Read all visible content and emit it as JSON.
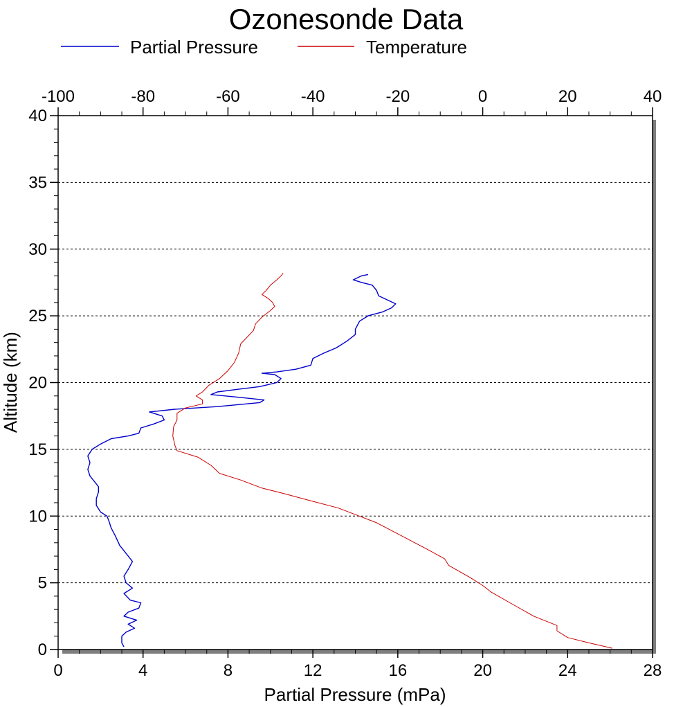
{
  "chart_data": {
    "type": "line",
    "title": "Ozonesonde Data",
    "legend": {
      "placement": "top",
      "entries": [
        {
          "label": "Partial Pressure",
          "color": "#0000cc"
        },
        {
          "label": "Temperature",
          "color": "#cc0000"
        }
      ]
    },
    "xlabel": "Partial Pressure (mPa)",
    "ylabel": "Altitude (km)",
    "x_bottom": {
      "lim": [
        0,
        28
      ],
      "ticks": [
        "0",
        "4",
        "8",
        "12",
        "16",
        "20",
        "24",
        "28"
      ]
    },
    "x_top": {
      "lim": [
        -100,
        40
      ],
      "ticks": [
        "-100",
        "-80",
        "-60",
        "-40",
        "-20",
        "0",
        "20",
        "40"
      ]
    },
    "y": {
      "lim": [
        0,
        40
      ],
      "ticks": [
        "0",
        "5",
        "10",
        "15",
        "20",
        "25",
        "30",
        "35",
        "40"
      ]
    },
    "grid": "horizontal dotted at major y ticks",
    "series": [
      {
        "name": "Partial Pressure",
        "axis": "x_bottom",
        "color": "#0000cc",
        "points": [
          [
            3.1,
            0.2
          ],
          [
            3.0,
            0.5
          ],
          [
            3.0,
            1.0
          ],
          [
            3.2,
            1.3
          ],
          [
            3.6,
            1.6
          ],
          [
            3.3,
            1.9
          ],
          [
            3.7,
            2.2
          ],
          [
            3.1,
            2.5
          ],
          [
            3.3,
            2.8
          ],
          [
            3.8,
            3.1
          ],
          [
            3.9,
            3.5
          ],
          [
            3.4,
            3.7
          ],
          [
            3.1,
            4.2
          ],
          [
            3.5,
            4.6
          ],
          [
            3.2,
            5.0
          ],
          [
            3.1,
            5.5
          ],
          [
            3.3,
            6.0
          ],
          [
            3.5,
            6.6
          ],
          [
            3.2,
            7.2
          ],
          [
            2.9,
            7.8
          ],
          [
            2.7,
            8.5
          ],
          [
            2.5,
            9.1
          ],
          [
            2.4,
            9.6
          ],
          [
            2.3,
            10.0
          ],
          [
            2.0,
            10.3
          ],
          [
            1.8,
            10.8
          ],
          [
            1.8,
            11.3
          ],
          [
            1.9,
            11.8
          ],
          [
            1.9,
            12.2
          ],
          [
            1.7,
            12.6
          ],
          [
            1.5,
            13.0
          ],
          [
            1.4,
            13.5
          ],
          [
            1.5,
            14.0
          ],
          [
            1.4,
            14.5
          ],
          [
            1.6,
            15.0
          ],
          [
            2.0,
            15.4
          ],
          [
            2.5,
            15.8
          ],
          [
            3.3,
            16.0
          ],
          [
            3.8,
            16.2
          ],
          [
            3.9,
            16.6
          ],
          [
            4.5,
            16.9
          ],
          [
            5.0,
            17.2
          ],
          [
            4.9,
            17.5
          ],
          [
            4.3,
            17.8
          ],
          [
            5.5,
            18.0
          ],
          [
            7.5,
            18.2
          ],
          [
            9.5,
            18.5
          ],
          [
            9.7,
            18.7
          ],
          [
            8.5,
            18.9
          ],
          [
            7.2,
            19.1
          ],
          [
            7.5,
            19.3
          ],
          [
            8.5,
            19.5
          ],
          [
            9.5,
            19.7
          ],
          [
            10.3,
            20.0
          ],
          [
            10.5,
            20.3
          ],
          [
            10.2,
            20.6
          ],
          [
            9.6,
            20.7
          ],
          [
            10.3,
            20.8
          ],
          [
            11.2,
            21.0
          ],
          [
            11.9,
            21.3
          ],
          [
            12.0,
            21.8
          ],
          [
            12.5,
            22.2
          ],
          [
            13.1,
            22.6
          ],
          [
            13.6,
            23.1
          ],
          [
            14.0,
            23.6
          ],
          [
            14.0,
            24.0
          ],
          [
            14.2,
            24.6
          ],
          [
            14.6,
            25.0
          ],
          [
            15.3,
            25.3
          ],
          [
            15.7,
            25.6
          ],
          [
            15.9,
            25.9
          ],
          [
            15.5,
            26.2
          ],
          [
            15.1,
            26.5
          ],
          [
            15.0,
            26.9
          ],
          [
            14.8,
            27.3
          ],
          [
            14.3,
            27.5
          ],
          [
            13.9,
            27.7
          ],
          [
            14.3,
            28.0
          ],
          [
            14.6,
            28.1
          ]
        ]
      },
      {
        "name": "Temperature",
        "axis": "x_top",
        "color": "#cc0000",
        "points": [
          [
            30.5,
            0.1
          ],
          [
            25.0,
            0.5
          ],
          [
            20.0,
            0.9
          ],
          [
            17.5,
            1.4
          ],
          [
            17.5,
            1.8
          ],
          [
            12.0,
            2.5
          ],
          [
            7.0,
            3.4
          ],
          [
            2.0,
            4.3
          ],
          [
            0.0,
            4.8
          ],
          [
            -3.0,
            5.4
          ],
          [
            -8.0,
            6.3
          ],
          [
            -9.0,
            6.8
          ],
          [
            -13.0,
            7.5
          ],
          [
            -19.0,
            8.5
          ],
          [
            -25.0,
            9.5
          ],
          [
            -34.0,
            10.6
          ],
          [
            -40.0,
            11.1
          ],
          [
            -47.0,
            11.7
          ],
          [
            -52.0,
            12.1
          ],
          [
            -57.0,
            12.7
          ],
          [
            -62.0,
            13.2
          ],
          [
            -64.0,
            13.8
          ],
          [
            -67.0,
            14.4
          ],
          [
            -72.0,
            14.9
          ],
          [
            -72.5,
            15.3
          ],
          [
            -73.0,
            16.0
          ],
          [
            -72.8,
            16.7
          ],
          [
            -72.0,
            17.2
          ],
          [
            -72.0,
            17.7
          ],
          [
            -70.0,
            18.1
          ],
          [
            -66.0,
            18.4
          ],
          [
            -66.0,
            18.7
          ],
          [
            -67.5,
            19.0
          ],
          [
            -66.0,
            19.3
          ],
          [
            -64.5,
            19.8
          ],
          [
            -62.0,
            20.3
          ],
          [
            -60.0,
            20.9
          ],
          [
            -58.5,
            21.5
          ],
          [
            -57.5,
            22.2
          ],
          [
            -57.0,
            22.9
          ],
          [
            -55.5,
            23.4
          ],
          [
            -54.0,
            23.9
          ],
          [
            -53.5,
            24.4
          ],
          [
            -52.0,
            24.9
          ],
          [
            -50.0,
            25.4
          ],
          [
            -49.0,
            25.7
          ],
          [
            -49.5,
            26.0
          ],
          [
            -50.5,
            26.3
          ],
          [
            -52.0,
            26.6
          ],
          [
            -51.0,
            26.9
          ],
          [
            -50.0,
            27.3
          ],
          [
            -48.5,
            27.7
          ],
          [
            -47.5,
            28.0
          ],
          [
            -47.0,
            28.2
          ]
        ]
      }
    ]
  }
}
